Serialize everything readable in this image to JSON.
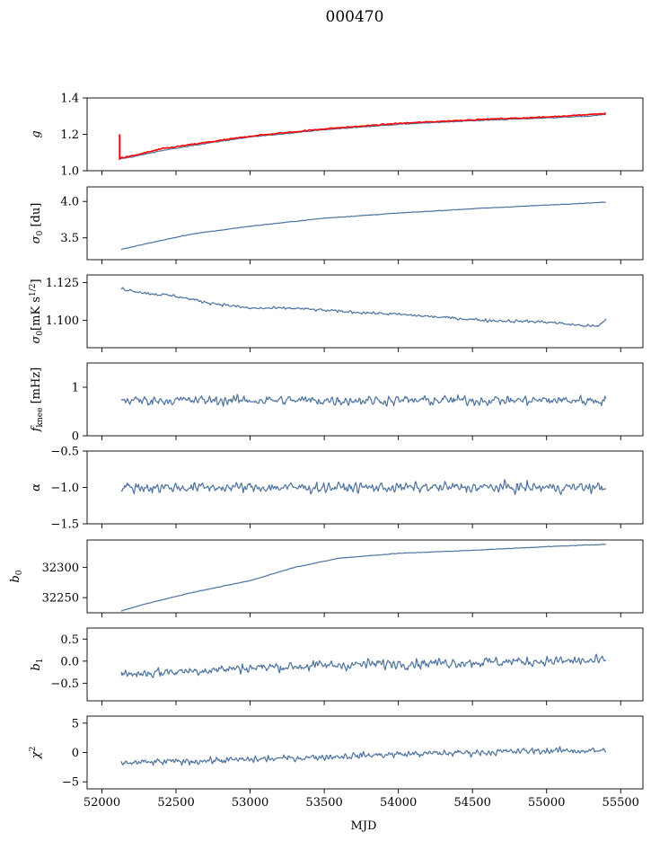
{
  "figure": {
    "title": "000470"
  },
  "chart_data": [
    {
      "id": "g",
      "type": "line",
      "ylabel": "g",
      "ylabel_html": "<tspan font-style='italic'>g</tspan>",
      "ylim": [
        1.0,
        1.4
      ],
      "yticks": [
        1.0,
        1.2,
        1.4
      ],
      "ytick_labels": [
        "1.0",
        "1.2",
        "1.4"
      ],
      "series": [
        {
          "color": "#4c72a0",
          "noise": 0.003,
          "x": [
            52120,
            52200,
            52400,
            52700,
            53000,
            53500,
            54000,
            54500,
            55000,
            55300,
            55400
          ],
          "y": [
            1.065,
            1.075,
            1.11,
            1.15,
            1.185,
            1.225,
            1.255,
            1.275,
            1.29,
            1.3,
            1.31
          ]
        },
        {
          "color": "#ff0000",
          "noise": 0.004,
          "x": [
            52120,
            52200,
            52400,
            52700,
            53000,
            53500,
            54000,
            54500,
            55000,
            55300,
            55400
          ],
          "y": [
            1.07,
            1.08,
            1.12,
            1.155,
            1.19,
            1.23,
            1.26,
            1.28,
            1.295,
            1.31,
            1.315
          ],
          "spike": {
            "x": 52120,
            "y_top": 1.2,
            "y_bottom": 1.06
          }
        }
      ]
    },
    {
      "id": "sigma0",
      "type": "line",
      "ylabel": "σ0 [du]",
      "ylabel_html": "<tspan font-style='italic'>σ</tspan><tspan dy='3' font-size='9'>0</tspan><tspan dy='-3'> [du]</tspan>",
      "ylim": [
        3.2,
        4.2
      ],
      "yticks": [
        3.5,
        4.0
      ],
      "ytick_labels": [
        "3.5",
        "4.0"
      ],
      "series": [
        {
          "color": "#4c72a0",
          "noise": 0.005,
          "x": [
            52130,
            52300,
            52600,
            53000,
            53500,
            54000,
            54500,
            55000,
            55400
          ],
          "y": [
            3.34,
            3.42,
            3.55,
            3.66,
            3.77,
            3.84,
            3.9,
            3.95,
            3.99
          ]
        }
      ]
    },
    {
      "id": "sigma0_mk",
      "type": "line",
      "ylabel": "σ0[mK s1/2]",
      "ylabel_html": "<tspan font-style='italic'>σ</tspan><tspan dy='3' font-size='9'>0</tspan><tspan dy='-3'>[mK s</tspan><tspan dy='-5' font-size='9'>1/2</tspan><tspan dy='5'>]</tspan>",
      "ylim": [
        1.082,
        1.13
      ],
      "yticks": [
        1.1,
        1.125
      ],
      "ytick_labels": [
        "1.100",
        "1.125"
      ],
      "series": [
        {
          "color": "#4c72a0",
          "noise": 0.0012,
          "x": [
            52130,
            52300,
            52500,
            52700,
            53000,
            53300,
            53600,
            54000,
            54300,
            54600,
            55000,
            55200,
            55350,
            55400
          ],
          "y": [
            1.121,
            1.118,
            1.116,
            1.112,
            1.108,
            1.108,
            1.106,
            1.104,
            1.102,
            1.1,
            1.099,
            1.097,
            1.096,
            1.101
          ]
        }
      ]
    },
    {
      "id": "fknee",
      "type": "line",
      "ylabel": "fknee [mHz]",
      "ylabel_html": "<tspan font-style='italic'>f</tspan><tspan dy='3' font-size='9'>knee</tspan><tspan dy='-3'> [mHz]</tspan>",
      "ylim": [
        0,
        1.5
      ],
      "yticks": [
        0,
        1
      ],
      "ytick_labels": [
        "0",
        "1"
      ],
      "series": [
        {
          "color": "#4c72a0",
          "noise": 0.13,
          "x": [
            52130,
            55400
          ],
          "y": [
            0.73,
            0.73
          ]
        }
      ]
    },
    {
      "id": "alpha",
      "type": "line",
      "ylabel": "α",
      "ylabel_html": "<tspan font-style='italic'>α</tspan>",
      "ylim": [
        -1.5,
        -0.5
      ],
      "yticks": [
        -1.5,
        -1.0,
        -0.5
      ],
      "ytick_labels": [
        "−1.5",
        "−1.0",
        "−0.5"
      ],
      "series": [
        {
          "color": "#4c72a0",
          "noise": 0.09,
          "x": [
            52130,
            55400
          ],
          "y": [
            -1.0,
            -1.0
          ]
        }
      ]
    },
    {
      "id": "b0",
      "type": "line",
      "ylabel": "b0",
      "ylabel_html": "<tspan font-style='italic'>b</tspan><tspan dy='3' font-size='9'>0</tspan>",
      "ylim": [
        32225,
        32345
      ],
      "yticks": [
        32250,
        32300
      ],
      "ytick_labels": [
        "32250",
        "32300"
      ],
      "series": [
        {
          "color": "#4c72a0",
          "noise": 0.5,
          "x": [
            52130,
            52300,
            52600,
            53000,
            53300,
            53600,
            54000,
            54500,
            55000,
            55400
          ],
          "y": [
            32228,
            32240,
            32258,
            32278,
            32300,
            32315,
            32323,
            32328,
            32334,
            32338
          ]
        }
      ]
    },
    {
      "id": "b1",
      "type": "line",
      "ylabel": "b1",
      "ylabel_html": "<tspan font-style='italic'>b</tspan><tspan dy='3' font-size='9'>1</tspan>",
      "ylim": [
        -0.9,
        0.75
      ],
      "yticks": [
        -0.5,
        0.0,
        0.5
      ],
      "ytick_labels": [
        "−0.5",
        "0.0",
        "0.5"
      ],
      "series": [
        {
          "color": "#4c72a0",
          "noise": 0.15,
          "x": [
            52130,
            53000,
            54000,
            55000,
            55400
          ],
          "y": [
            -0.3,
            -0.15,
            -0.05,
            0.0,
            0.0
          ]
        }
      ]
    },
    {
      "id": "chi2",
      "type": "line",
      "ylabel": "χ2",
      "ylabel_html": "<tspan font-style='italic'>χ</tspan><tspan dy='-5' font-size='9'>2</tspan>",
      "ylim": [
        -6.2,
        6.2
      ],
      "yticks": [
        -5,
        0,
        5
      ],
      "ytick_labels": [
        "−5",
        "0",
        "5"
      ],
      "series": [
        {
          "color": "#4c72a0",
          "noise": 0.7,
          "x": [
            52130,
            53000,
            54000,
            55000,
            55400
          ],
          "y": [
            -1.8,
            -1.2,
            -0.3,
            0.3,
            0.3
          ]
        }
      ]
    }
  ],
  "xaxis": {
    "label": "MJD",
    "xlim": [
      51900,
      55650
    ],
    "ticks": [
      52000,
      52500,
      53000,
      53500,
      54000,
      54500,
      55000,
      55500
    ],
    "tick_labels": [
      "52000",
      "52500",
      "53000",
      "53500",
      "54000",
      "54500",
      "55000",
      "55500"
    ]
  }
}
